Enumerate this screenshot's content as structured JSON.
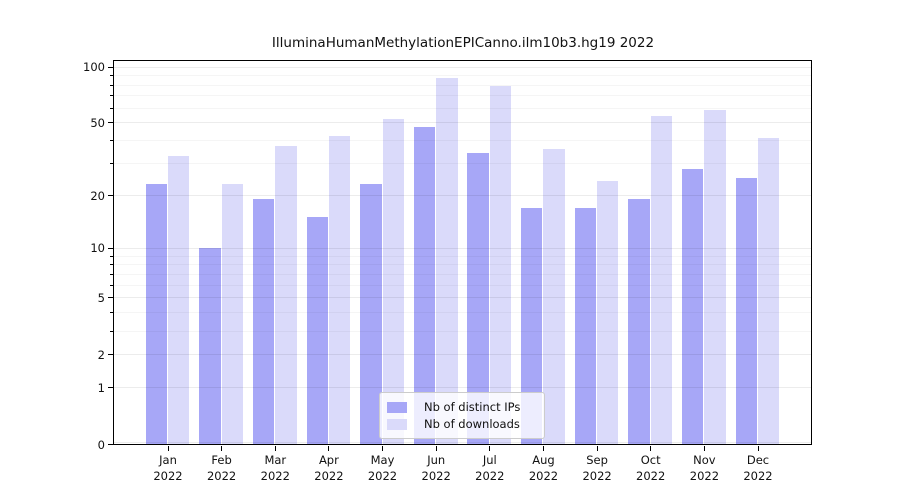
{
  "page": {
    "background": "#ffffff"
  },
  "chart_data": {
    "type": "bar",
    "title": "IlluminaHumanMethylationEPICanno.ilm10b3.hg19 2022",
    "categories": [
      "Jan",
      "Feb",
      "Mar",
      "Apr",
      "May",
      "Jun",
      "Jul",
      "Aug",
      "Sep",
      "Oct",
      "Nov",
      "Dec"
    ],
    "year_label": "2022",
    "series": [
      {
        "name": "Nb of distinct IPs",
        "color": "#a7a7f7",
        "values": [
          23,
          10,
          19,
          15,
          23,
          47,
          34,
          17,
          17,
          19,
          28,
          25
        ]
      },
      {
        "name": "Nb of downloads",
        "color": "#dadafa",
        "values": [
          33,
          23,
          37,
          42,
          52,
          87,
          79,
          36,
          24,
          54,
          58,
          41
        ]
      }
    ],
    "xlabel": "",
    "ylabel": "",
    "yscale": "log1p",
    "y_ticks": [
      0,
      1,
      2,
      5,
      10,
      20,
      50,
      100
    ],
    "y_minor_ticks": [
      3,
      4,
      6,
      7,
      8,
      9,
      30,
      40,
      60,
      70,
      80,
      90
    ],
    "ylim": [
      0,
      107
    ],
    "grid": "horizontal",
    "legend_position": "lower center",
    "frame_color": "#000000",
    "gridline_color": "#ededed"
  }
}
